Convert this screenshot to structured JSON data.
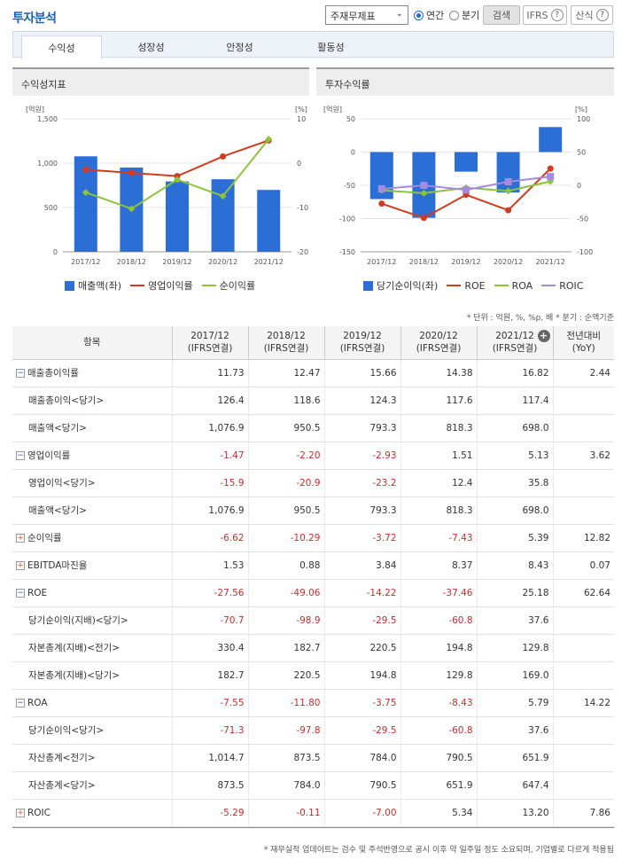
{
  "header": {
    "title": "투자분석",
    "select_value": "주재무제표",
    "radio_annual": "연간",
    "radio_quarter": "분기",
    "search_btn": "검색",
    "ifrs_btn": "IFRS",
    "formula_btn": "산식",
    "help": "?"
  },
  "tabs": [
    "수익성",
    "성장성",
    "안정성",
    "활동성"
  ],
  "left_panel": {
    "title": "수익성지표"
  },
  "right_panel": {
    "title": "투자수익률"
  },
  "chart_data": [
    {
      "type": "bar+line",
      "title": "수익성지표",
      "categories": [
        "2017/12",
        "2018/12",
        "2019/12",
        "2020/12",
        "2021/12"
      ],
      "left_unit": "[억원]",
      "right_unit": "[%]",
      "left_ticks": [
        "1,500",
        "1,000",
        "500",
        "0"
      ],
      "right_ticks": [
        "10",
        "0",
        "-10",
        "-20"
      ],
      "ylim_left": [
        0,
        1500
      ],
      "ylim_right": [
        -20,
        10
      ],
      "series": [
        {
          "name": "매출액(좌)",
          "kind": "bar",
          "axis": "left",
          "color": "#2b6fd6",
          "values": [
            1076.9,
            950.5,
            793.3,
            818.3,
            698.0
          ]
        },
        {
          "name": "영업이익률",
          "kind": "line",
          "axis": "right",
          "color": "#d33a1e",
          "values": [
            -1.47,
            -2.2,
            -2.93,
            1.51,
            5.13
          ]
        },
        {
          "name": "순이익률",
          "kind": "line",
          "axis": "right",
          "color": "#8cc43a",
          "values": [
            -6.62,
            -10.29,
            -3.72,
            -7.43,
            5.39
          ]
        }
      ]
    },
    {
      "type": "bar+line",
      "title": "투자수익률",
      "categories": [
        "2017/12",
        "2018/12",
        "2019/12",
        "2020/12",
        "2021/12"
      ],
      "left_unit": "[억원]",
      "right_unit": "[%]",
      "left_ticks": [
        "50",
        "0",
        "-50",
        "-100",
        "-150"
      ],
      "right_ticks": [
        "100",
        "50",
        "0",
        "-50",
        "-100"
      ],
      "ylim_left": [
        -150,
        50
      ],
      "ylim_right": [
        -100,
        100
      ],
      "series": [
        {
          "name": "당기순이익(좌)",
          "kind": "bar",
          "axis": "left",
          "color": "#2b6fd6",
          "values": [
            -70.7,
            -98.9,
            -29.5,
            -60.8,
            37.6
          ]
        },
        {
          "name": "ROE",
          "kind": "line",
          "axis": "right",
          "color": "#d33a1e",
          "values": [
            -27.56,
            -49.06,
            -14.22,
            -37.46,
            25.18
          ]
        },
        {
          "name": "ROA",
          "kind": "line",
          "axis": "right",
          "color": "#8cc43a",
          "values": [
            -7.55,
            -11.8,
            -3.75,
            -8.43,
            5.79
          ]
        },
        {
          "name": "ROIC",
          "kind": "line",
          "axis": "right",
          "color": "#a58be0",
          "values": [
            -5.29,
            -0.11,
            -7.0,
            5.34,
            13.2
          ]
        }
      ]
    }
  ],
  "unit_note": "* 단위 : 억원, %, %p, 배   * 분기 : 순액기준",
  "table": {
    "headers": [
      "항목",
      "2017/12\n(IFRS연결)",
      "2018/12\n(IFRS연결)",
      "2019/12\n(IFRS연결)",
      "2020/12\n(IFRS연결)",
      "2021/12\n(IFRS연결)",
      "전년대비\n(YoY)"
    ],
    "rows": [
      {
        "label": "매출총이익률",
        "toggle": "-",
        "sub": false,
        "values": [
          "11.73",
          "12.47",
          "15.66",
          "14.38",
          "16.82",
          "2.44"
        ]
      },
      {
        "label": "매출총이익<당기>",
        "toggle": "",
        "sub": true,
        "values": [
          "126.4",
          "118.6",
          "124.3",
          "117.6",
          "117.4",
          ""
        ]
      },
      {
        "label": "매출액<당기>",
        "toggle": "",
        "sub": true,
        "values": [
          "1,076.9",
          "950.5",
          "793.3",
          "818.3",
          "698.0",
          ""
        ]
      },
      {
        "label": "영업이익률",
        "toggle": "-",
        "sub": false,
        "values": [
          "-1.47",
          "-2.20",
          "-2.93",
          "1.51",
          "5.13",
          "3.62"
        ]
      },
      {
        "label": "영업이익<당기>",
        "toggle": "",
        "sub": true,
        "values": [
          "-15.9",
          "-20.9",
          "-23.2",
          "12.4",
          "35.8",
          ""
        ]
      },
      {
        "label": "매출액<당기>",
        "toggle": "",
        "sub": true,
        "values": [
          "1,076.9",
          "950.5",
          "793.3",
          "818.3",
          "698.0",
          ""
        ]
      },
      {
        "label": "순이익률",
        "toggle": "+",
        "sub": false,
        "values": [
          "-6.62",
          "-10.29",
          "-3.72",
          "-7.43",
          "5.39",
          "12.82"
        ]
      },
      {
        "label": "EBITDA마진율",
        "toggle": "+",
        "sub": false,
        "values": [
          "1.53",
          "0.88",
          "3.84",
          "8.37",
          "8.43",
          "0.07"
        ]
      },
      {
        "label": "ROE",
        "toggle": "-",
        "sub": false,
        "values": [
          "-27.56",
          "-49.06",
          "-14.22",
          "-37.46",
          "25.18",
          "62.64"
        ]
      },
      {
        "label": "당기순이익(지배)<당기>",
        "toggle": "",
        "sub": true,
        "values": [
          "-70.7",
          "-98.9",
          "-29.5",
          "-60.8",
          "37.6",
          ""
        ]
      },
      {
        "label": "자본총계(지배)<전기>",
        "toggle": "",
        "sub": true,
        "values": [
          "330.4",
          "182.7",
          "220.5",
          "194.8",
          "129.8",
          ""
        ]
      },
      {
        "label": "자본총계(지배)<당기>",
        "toggle": "",
        "sub": true,
        "values": [
          "182.7",
          "220.5",
          "194.8",
          "129.8",
          "169.0",
          ""
        ]
      },
      {
        "label": "ROA",
        "toggle": "-",
        "sub": false,
        "values": [
          "-7.55",
          "-11.80",
          "-3.75",
          "-8.43",
          "5.79",
          "14.22"
        ]
      },
      {
        "label": "당기순이익<당기>",
        "toggle": "",
        "sub": true,
        "values": [
          "-71.3",
          "-97.8",
          "-29.5",
          "-60.8",
          "37.6",
          ""
        ]
      },
      {
        "label": "자산총계<전기>",
        "toggle": "",
        "sub": true,
        "values": [
          "1,014.7",
          "873.5",
          "784.0",
          "790.5",
          "651.9",
          ""
        ]
      },
      {
        "label": "자산총계<당기>",
        "toggle": "",
        "sub": true,
        "values": [
          "873.5",
          "784.0",
          "790.5",
          "651.9",
          "647.4",
          ""
        ]
      },
      {
        "label": "ROIC",
        "toggle": "+",
        "sub": false,
        "values": [
          "-5.29",
          "-0.11",
          "-7.00",
          "5.34",
          "13.20",
          "7.86"
        ]
      }
    ]
  },
  "footer_note": "* 재무실적 업데이트는 검수 및 주석반영으로 공시 이후 약 일주일 정도 소요되며, 기업별로 다르게 적용됨",
  "colors": {
    "accent": "#1c5fb8",
    "bar": "#2b6fd6",
    "negative": "#d12b2b"
  }
}
